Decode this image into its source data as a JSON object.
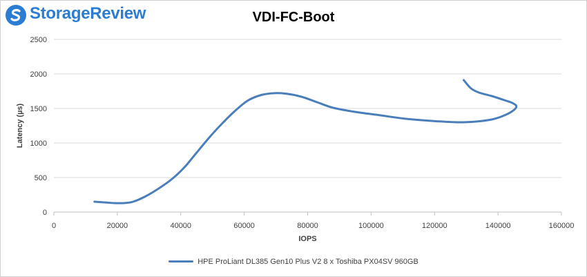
{
  "branding": {
    "logo_text": "StorageReview"
  },
  "chart_data": {
    "type": "line",
    "title": "VDI-FC-Boot",
    "xlabel": "IOPS",
    "ylabel": "Latency (µs)",
    "xlim": [
      0,
      160000
    ],
    "ylim": [
      0,
      2500
    ],
    "xticks": [
      0,
      20000,
      40000,
      60000,
      80000,
      100000,
      120000,
      140000,
      160000
    ],
    "yticks": [
      0,
      500,
      1000,
      1500,
      2000,
      2500
    ],
    "grid": "horizontal",
    "legend_position": "bottom",
    "series": [
      {
        "name": "HPE ProLiant DL385 Gen10 Plus V2 8 x Toshiba PX04SV 960GB",
        "color": "#4a7ebb",
        "points": [
          [
            12800,
            150
          ],
          [
            16000,
            140
          ],
          [
            19000,
            130
          ],
          [
            22000,
            130
          ],
          [
            25000,
            150
          ],
          [
            29000,
            230
          ],
          [
            33000,
            340
          ],
          [
            37000,
            470
          ],
          [
            41000,
            640
          ],
          [
            45000,
            860
          ],
          [
            49000,
            1080
          ],
          [
            53000,
            1280
          ],
          [
            57000,
            1460
          ],
          [
            61000,
            1610
          ],
          [
            65000,
            1690
          ],
          [
            69000,
            1720
          ],
          [
            73000,
            1715
          ],
          [
            78000,
            1670
          ],
          [
            83000,
            1590
          ],
          [
            88000,
            1510
          ],
          [
            95000,
            1450
          ],
          [
            103000,
            1400
          ],
          [
            111000,
            1350
          ],
          [
            119000,
            1320
          ],
          [
            127000,
            1300
          ],
          [
            133000,
            1310
          ],
          [
            138000,
            1340
          ],
          [
            141500,
            1390
          ],
          [
            144500,
            1460
          ],
          [
            145800,
            1530
          ],
          [
            144500,
            1580
          ],
          [
            142000,
            1620
          ],
          [
            138000,
            1680
          ],
          [
            134000,
            1730
          ],
          [
            131500,
            1790
          ],
          [
            129200,
            1910
          ]
        ]
      }
    ]
  }
}
